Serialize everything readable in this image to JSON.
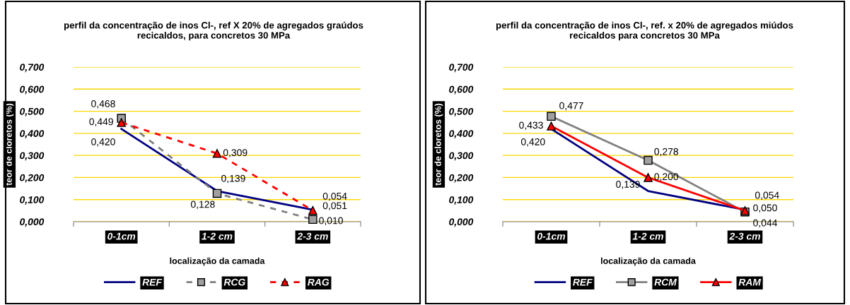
{
  "chart_data": [
    {
      "type": "line",
      "title": "perfil da concentração de inos Cl-, ref X 20% de agregados graúdos recicaldos, para concretos 30 MPa",
      "xlabel": "localização da camada",
      "ylabel": "teor de cloretos (%)",
      "categories": [
        "0-1cm",
        "1-2 cm",
        "2-3 cm"
      ],
      "ylim": [
        0,
        0.7
      ],
      "yticks": [
        {
          "value": 0,
          "label": "0,000"
        },
        {
          "value": 0.1,
          "label": "0,100"
        },
        {
          "value": 0.2,
          "label": "0,200"
        },
        {
          "value": 0.3,
          "label": "0,300"
        },
        {
          "value": 0.4,
          "label": "0,400"
        },
        {
          "value": 0.5,
          "label": "0,500"
        },
        {
          "value": 0.6,
          "label": "0,600"
        },
        {
          "value": 0.7,
          "label": "0,700"
        }
      ],
      "grid": "y",
      "legend": "bottom",
      "series": [
        {
          "name": "REF",
          "color": "#000080",
          "values": [
            0.42,
            0.139,
            0.054
          ],
          "value_labels": [
            "0,420",
            "0,139",
            "0,054"
          ],
          "marker": "none",
          "line_style": "solid"
        },
        {
          "name": "RCG",
          "color": "#808080",
          "values": [
            0.468,
            0.128,
            0.01
          ],
          "value_labels": [
            "0,468",
            "0,128",
            "0,010"
          ],
          "marker": "square",
          "line_style": "dashed"
        },
        {
          "name": "RAG",
          "color": "#ff0000",
          "values": [
            0.449,
            0.309,
            0.051
          ],
          "value_labels": [
            "0,449",
            "0,309",
            "0,051"
          ],
          "marker": "triangle",
          "line_style": "dashed"
        }
      ]
    },
    {
      "type": "line",
      "title": "perfil da concentração de inos Cl-, ref. x 20% de agregados miúdos recicaldos para concretos 30 MPa",
      "xlabel": "localização da camada",
      "ylabel": "teor de cloretos (%)",
      "categories": [
        "0-1cm",
        "1-2 cm",
        "2-3 cm"
      ],
      "ylim": [
        0,
        0.7
      ],
      "yticks": [
        {
          "value": 0,
          "label": "0,000"
        },
        {
          "value": 0.1,
          "label": "0,100"
        },
        {
          "value": 0.2,
          "label": "0,200"
        },
        {
          "value": 0.3,
          "label": "0,300"
        },
        {
          "value": 0.4,
          "label": "0,400"
        },
        {
          "value": 0.5,
          "label": "0,500"
        },
        {
          "value": 0.6,
          "label": "0,600"
        },
        {
          "value": 0.7,
          "label": "0,700"
        }
      ],
      "grid": "y",
      "legend": "bottom",
      "series": [
        {
          "name": "REF",
          "color": "#000080",
          "values": [
            0.42,
            0.139,
            0.054
          ],
          "value_labels": [
            "0,420",
            "0,139",
            "0,054"
          ],
          "marker": "none",
          "line_style": "solid"
        },
        {
          "name": "RCM",
          "color": "#808080",
          "values": [
            0.477,
            0.278,
            0.044
          ],
          "value_labels": [
            "0,477",
            "0,278",
            "0,044"
          ],
          "marker": "square",
          "line_style": "solid"
        },
        {
          "name": "RAM",
          "color": "#ff0000",
          "values": [
            0.433,
            0.2,
            0.05
          ],
          "value_labels": [
            "0,433",
            "0,200",
            "0,050"
          ],
          "marker": "triangle",
          "line_style": "solid"
        }
      ]
    }
  ]
}
